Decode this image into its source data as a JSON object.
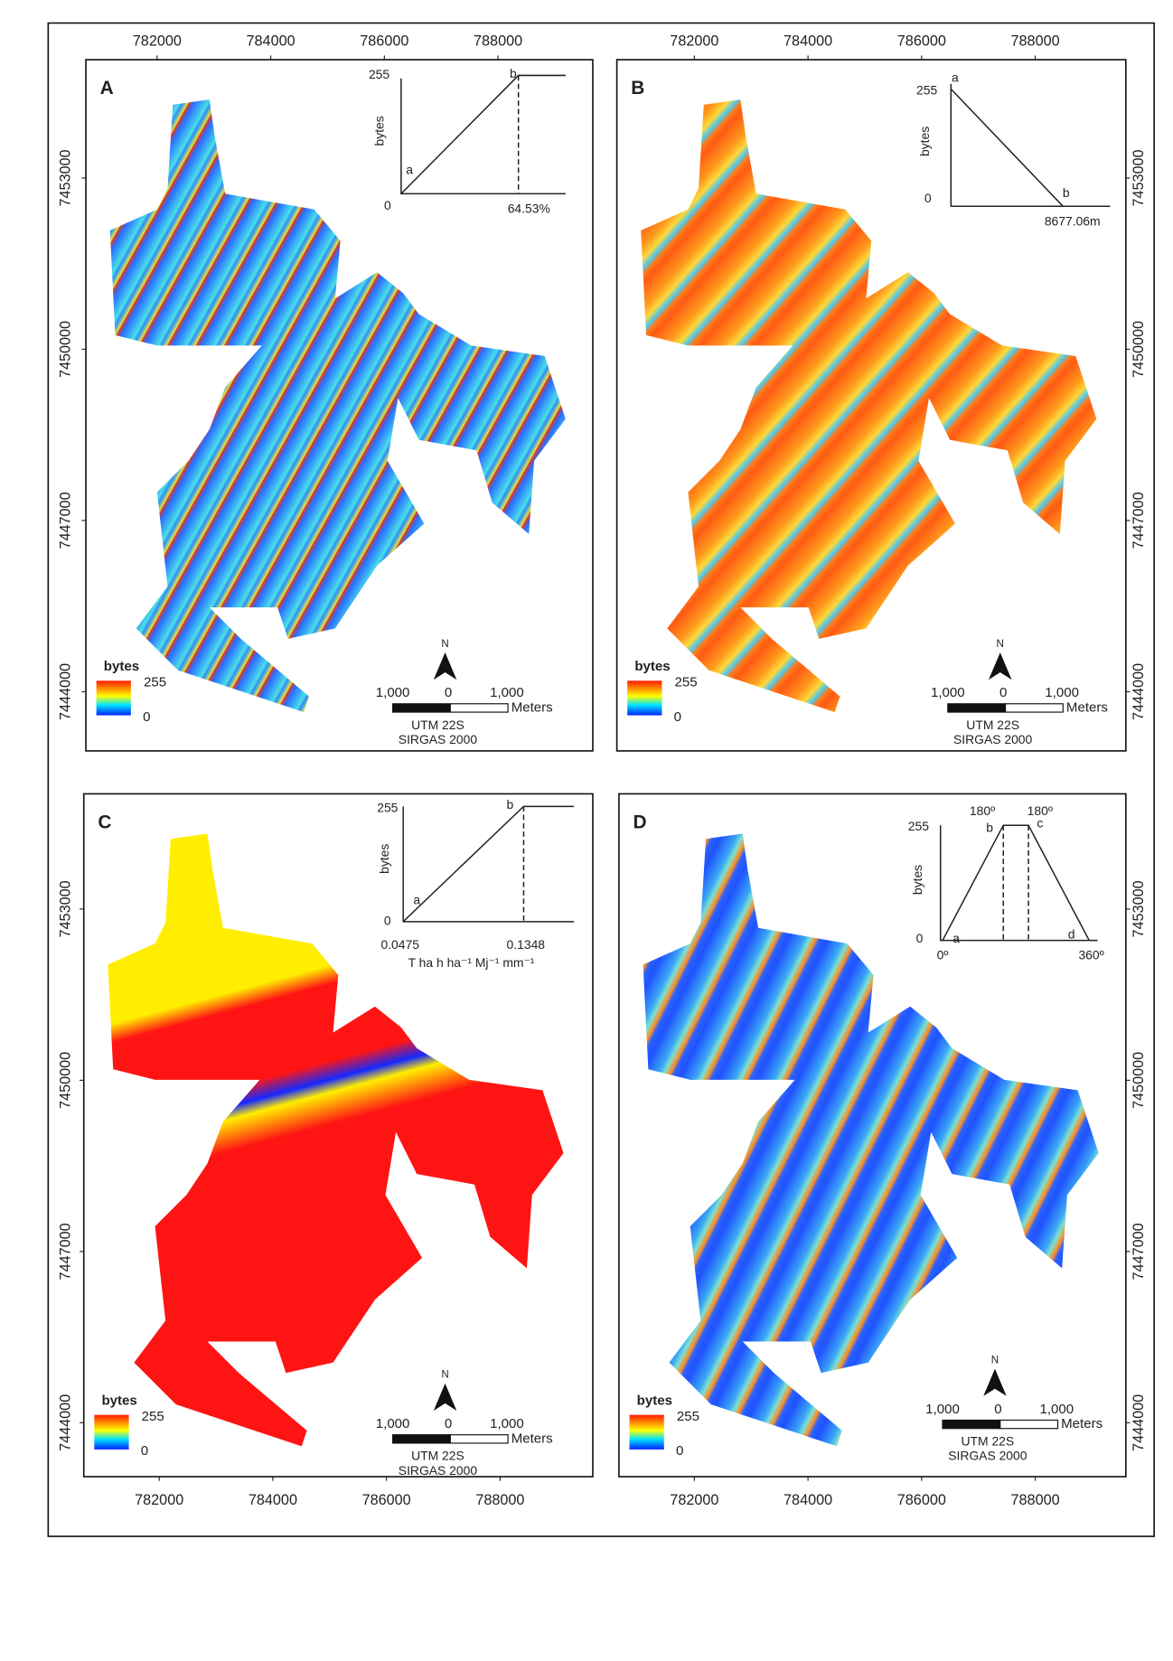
{
  "x_ticks": [
    782000,
    784000,
    786000,
    788000
  ],
  "y_ticks": [
    7453000,
    7450000,
    7447000,
    7444000
  ],
  "panels": [
    {
      "label": "A",
      "inset_labels": [
        "255",
        "bytes",
        "a",
        "b",
        "0",
        "64.53%"
      ],
      "legend": {
        "title": "bytes",
        "max": "255",
        "min": "0"
      },
      "north": "N",
      "scale_labels": [
        "1,000",
        "0",
        "1,000"
      ],
      "scale_unit": "Meters",
      "projection": [
        "UTM 22S",
        "SIRGAS 2000"
      ]
    },
    {
      "label": "B",
      "inset_labels": [
        "a",
        "255",
        "bytes",
        "0",
        "b",
        "8677.06m"
      ],
      "legend": {
        "title": "bytes",
        "max": "255",
        "min": "0"
      },
      "north": "N",
      "scale_labels": [
        "1,000",
        "0",
        "1,000"
      ],
      "scale_unit": "Meters",
      "projection": [
        "UTM 22S",
        "SIRGAS 2000"
      ]
    },
    {
      "label": "C",
      "inset_labels": [
        "255",
        "b",
        "bytes",
        "a",
        "0",
        "0.0475",
        "0.1348",
        "T ha h ha⁻¹ Mj⁻¹ mm⁻¹"
      ],
      "legend": {
        "title": "bytes",
        "max": "255",
        "min": "0"
      },
      "north": "N",
      "scale_labels": [
        "1,000",
        "0",
        "1,000"
      ],
      "scale_unit": "Meters",
      "projection": [
        "UTM 22S",
        "SIRGAS 2000"
      ]
    },
    {
      "label": "D",
      "inset_labels": [
        "180º",
        "180º",
        "255",
        "b",
        "c",
        "bytes",
        "0",
        "a",
        "d",
        "0º",
        "360º"
      ],
      "legend": {
        "title": "bytes",
        "max": "255",
        "min": "0"
      },
      "north": "N",
      "scale_labels": [
        "1,000",
        "0",
        "1,000"
      ],
      "scale_unit": "Meters",
      "projection": [
        "UTM 22S",
        "SIRGAS 2000"
      ]
    }
  ]
}
